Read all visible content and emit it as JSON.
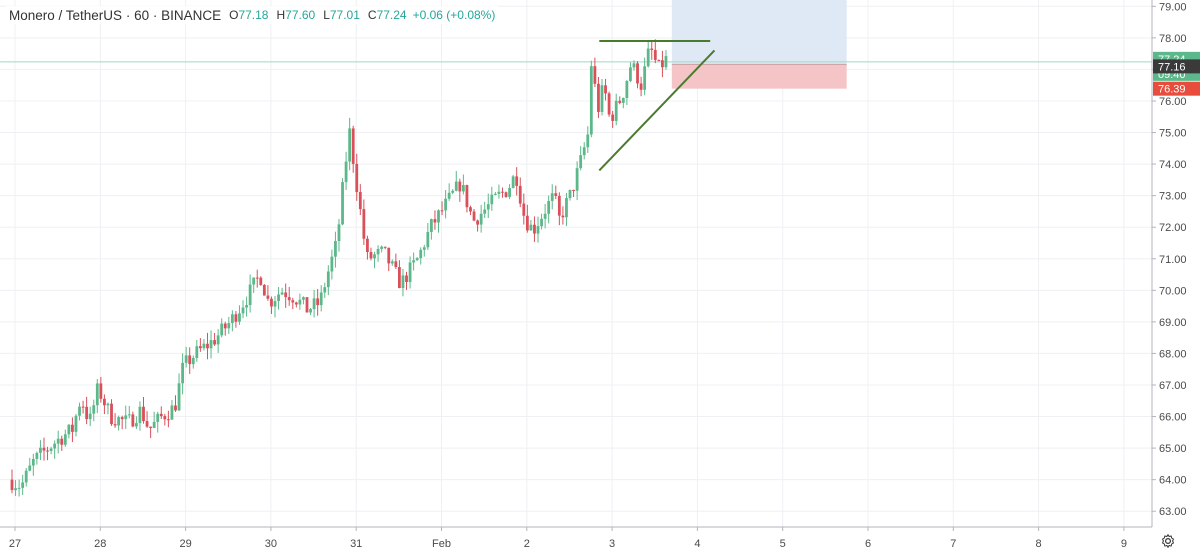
{
  "legend": {
    "symbol": "Monero / TetherUS",
    "interval": "60",
    "exchange": "BINANCE",
    "open_label": "O",
    "open": "77.18",
    "high_label": "H",
    "high": "77.60",
    "low_label": "L",
    "low": "77.01",
    "close_label": "C",
    "close": "77.24",
    "change": "+0.06 (+0.08%)"
  },
  "price_badges": {
    "current": "77.24",
    "countdown": "09:40",
    "entry": "77.16",
    "stop": "76.39"
  },
  "colors": {
    "up": "#5cb88a",
    "down": "#d9505a",
    "trendline": "#4a7a2e",
    "target_zone": "#dfe9f6",
    "stop_zone": "#f4c4c6",
    "current_badge": "#5cb88a",
    "stop_badge": "#e74c3c",
    "entry_badge": "#3a3a3a"
  },
  "icons": {
    "settings": "gear-icon"
  },
  "chart_data": {
    "type": "candlestick",
    "y_ticks": [
      "63.00",
      "64.00",
      "65.00",
      "66.00",
      "67.00",
      "68.00",
      "69.00",
      "70.00",
      "71.00",
      "72.00",
      "73.00",
      "74.00",
      "75.00",
      "76.00",
      "77.00",
      "78.00",
      "79.00"
    ],
    "x_ticks": [
      {
        "label": "27",
        "day": 0
      },
      {
        "label": "28",
        "day": 1
      },
      {
        "label": "29",
        "day": 2
      },
      {
        "label": "30",
        "day": 3
      },
      {
        "label": "31",
        "day": 4
      },
      {
        "label": "Feb",
        "day": 5
      },
      {
        "label": "2",
        "day": 6
      },
      {
        "label": "3",
        "day": 7
      },
      {
        "label": "4",
        "day": 8
      },
      {
        "label": "5",
        "day": 9
      },
      {
        "label": "6",
        "day": 10
      },
      {
        "label": "7",
        "day": 11
      },
      {
        "label": "8",
        "day": 12
      },
      {
        "label": "9",
        "day": 13
      }
    ],
    "ylim": [
      62.5,
      79.2
    ],
    "grid": true,
    "anchors": [
      [
        0.0,
        64.0
      ],
      [
        0.15,
        63.8
      ],
      [
        0.3,
        64.6
      ],
      [
        0.55,
        65.2
      ],
      [
        0.75,
        65.6
      ],
      [
        0.85,
        66.6
      ],
      [
        0.95,
        65.8
      ],
      [
        1.05,
        66.9
      ],
      [
        1.2,
        66.0
      ],
      [
        1.4,
        65.8
      ],
      [
        1.55,
        66.2
      ],
      [
        1.65,
        65.6
      ],
      [
        1.8,
        66.0
      ],
      [
        1.95,
        66.3
      ],
      [
        2.05,
        67.6
      ],
      [
        2.2,
        68.0
      ],
      [
        2.4,
        68.4
      ],
      [
        2.6,
        69.0
      ],
      [
        2.8,
        69.8
      ],
      [
        2.95,
        70.5
      ],
      [
        3.05,
        69.6
      ],
      [
        3.2,
        70.0
      ],
      [
        3.35,
        69.8
      ],
      [
        3.5,
        69.4
      ],
      [
        3.65,
        69.6
      ],
      [
        3.75,
        70.6
      ],
      [
        3.85,
        71.5
      ],
      [
        3.95,
        74.0
      ],
      [
        4.0,
        75.0
      ],
      [
        4.1,
        73.0
      ],
      [
        4.2,
        71.0
      ],
      [
        4.4,
        71.2
      ],
      [
        4.6,
        70.2
      ],
      [
        4.8,
        71.0
      ],
      [
        4.95,
        72.0
      ],
      [
        5.05,
        72.4
      ],
      [
        5.2,
        73.0
      ],
      [
        5.3,
        73.4
      ],
      [
        5.45,
        72.2
      ],
      [
        5.6,
        72.6
      ],
      [
        5.75,
        73.0
      ],
      [
        5.85,
        73.2
      ],
      [
        5.95,
        73.7
      ],
      [
        6.05,
        72.3
      ],
      [
        6.15,
        71.9
      ],
      [
        6.3,
        72.6
      ],
      [
        6.4,
        73.0
      ],
      [
        6.45,
        72.2
      ],
      [
        6.6,
        73.1
      ],
      [
        6.7,
        74.0
      ],
      [
        6.8,
        75.0
      ],
      [
        6.84,
        77.6
      ],
      [
        6.9,
        75.6
      ],
      [
        6.98,
        76.5
      ],
      [
        7.05,
        75.4
      ],
      [
        7.2,
        76.2
      ],
      [
        7.3,
        77.2
      ],
      [
        7.42,
        76.5
      ],
      [
        7.52,
        77.7
      ],
      [
        7.62,
        77.0
      ],
      [
        7.7,
        77.3
      ]
    ],
    "pattern_lines": [
      {
        "name": "resistance",
        "from": {
          "day": 6.85,
          "price": 77.9
        },
        "to": {
          "day": 8.15,
          "price": 77.9
        }
      },
      {
        "name": "support",
        "from": {
          "day": 6.85,
          "price": 73.8
        },
        "to": {
          "day": 8.2,
          "price": 77.6
        }
      }
    ],
    "position_tool": {
      "day_start": 7.7,
      "day_end": 9.75,
      "entry_price": 77.16,
      "target_price": 79.2,
      "stop_price": 76.39
    },
    "current_price": 77.24
  }
}
